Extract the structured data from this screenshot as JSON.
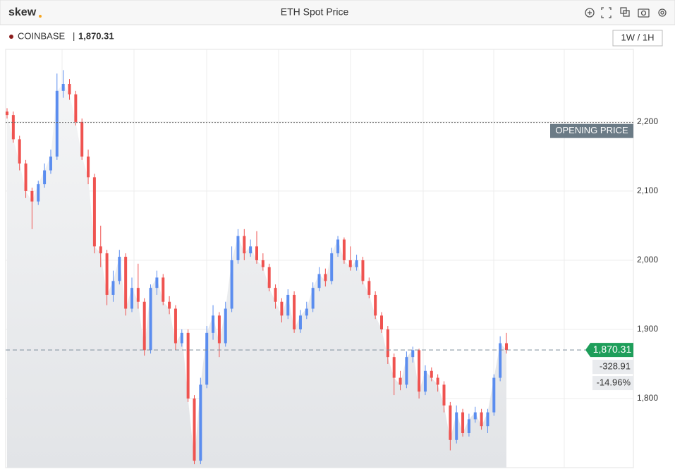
{
  "header": {
    "logo": "skew",
    "title": "ETH Spot Price"
  },
  "chart_data": {
    "type": "candlestick",
    "exchange": "COINBASE",
    "last_price": {
      "value": 1870.31,
      "label": "1,870.31"
    },
    "change": -328.91,
    "change_pct": {
      "value": -14.96,
      "label": "-14.96%"
    },
    "opening_price": {
      "value": 2199.22,
      "label": "OPENING PRICE"
    },
    "timeframe": "1W / 1H",
    "ylim": [
      1700,
      2305
    ],
    "yticks": [
      {
        "value": 1800,
        "label": "1,800"
      },
      {
        "value": 1900,
        "label": "1,900"
      },
      {
        "value": 2000,
        "label": "2,000"
      },
      {
        "value": 2100,
        "label": "2,100"
      },
      {
        "value": 2200,
        "label": "2,200"
      }
    ],
    "up_color": "#5b8def",
    "down_color": "#ef5350",
    "candles": {
      "open": [
        2215,
        2210,
        2175,
        2140,
        2100,
        2085,
        2110,
        2130,
        2150,
        2245,
        2255,
        2240,
        2200,
        2150,
        2120,
        2020,
        2010,
        1950,
        1970,
        2005,
        1930,
        1960,
        1940,
        1870,
        1960,
        1975,
        1940,
        1930,
        1880,
        1895,
        1800,
        1710,
        1820,
        1895,
        1920,
        1880,
        1930,
        2000,
        2035,
        2010,
        2020,
        2000,
        1990,
        1960,
        1940,
        1920,
        1950,
        1900,
        1920,
        1930,
        1960,
        1980,
        1970,
        2010,
        2030,
        2000,
        1990,
        2000,
        1970,
        1950,
        1920,
        1900,
        1860,
        1830,
        1820,
        1860,
        1870,
        1810,
        1840,
        1830,
        1820,
        1790,
        1740,
        1780,
        1750,
        1770,
        1780,
        1760,
        1780,
        1830,
        1880
      ],
      "high": [
        2220,
        2215,
        2180,
        2145,
        2105,
        2115,
        2140,
        2160,
        2270,
        2275,
        2262,
        2245,
        2205,
        2160,
        2125,
        2050,
        2015,
        1985,
        2015,
        2010,
        1975,
        1995,
        1945,
        1965,
        1985,
        1980,
        1948,
        1935,
        1900,
        1900,
        1805,
        1830,
        1905,
        1935,
        1925,
        1940,
        2020,
        2045,
        2045,
        2030,
        2042,
        2010,
        1995,
        1965,
        1945,
        1958,
        1955,
        1928,
        1940,
        1968,
        1990,
        1988,
        2018,
        2035,
        2033,
        2020,
        2008,
        2005,
        1975,
        1955,
        1925,
        1905,
        1865,
        1840,
        1868,
        1875,
        1872,
        1848,
        1845,
        1835,
        1825,
        1795,
        1790,
        1785,
        1778,
        1788,
        1785,
        1785,
        1835,
        1890,
        1895
      ],
      "low": [
        2205,
        2170,
        2130,
        2090,
        2045,
        2080,
        2105,
        2125,
        2145,
        2235,
        2232,
        2195,
        2145,
        2110,
        2010,
        1990,
        1935,
        1940,
        1965,
        1920,
        1925,
        1930,
        1862,
        1865,
        1950,
        1935,
        1922,
        1870,
        1875,
        1795,
        1705,
        1705,
        1815,
        1885,
        1860,
        1875,
        1925,
        1995,
        2000,
        2005,
        1995,
        1985,
        1955,
        1930,
        1910,
        1915,
        1895,
        1895,
        1915,
        1925,
        1955,
        1962,
        1965,
        2005,
        1995,
        1985,
        1985,
        1965,
        1945,
        1915,
        1895,
        1850,
        1805,
        1812,
        1815,
        1852,
        1800,
        1805,
        1825,
        1810,
        1780,
        1725,
        1735,
        1745,
        1745,
        1765,
        1755,
        1750,
        1775,
        1825,
        1865
      ],
      "close": [
        2210,
        2175,
        2140,
        2100,
        2085,
        2110,
        2130,
        2150,
        2245,
        2255,
        2240,
        2200,
        2150,
        2120,
        2020,
        2010,
        1950,
        1970,
        2005,
        1930,
        1960,
        1940,
        1870,
        1960,
        1975,
        1940,
        1930,
        1880,
        1895,
        1800,
        1710,
        1820,
        1895,
        1920,
        1880,
        1930,
        2000,
        2035,
        2010,
        2020,
        2000,
        1990,
        1960,
        1940,
        1920,
        1950,
        1900,
        1920,
        1930,
        1960,
        1980,
        1970,
        2010,
        2030,
        2000,
        1990,
        2000,
        1970,
        1950,
        1920,
        1900,
        1860,
        1830,
        1820,
        1860,
        1870,
        1810,
        1840,
        1830,
        1820,
        1790,
        1740,
        1780,
        1750,
        1770,
        1780,
        1760,
        1780,
        1830,
        1880,
        1870.31
      ]
    }
  }
}
